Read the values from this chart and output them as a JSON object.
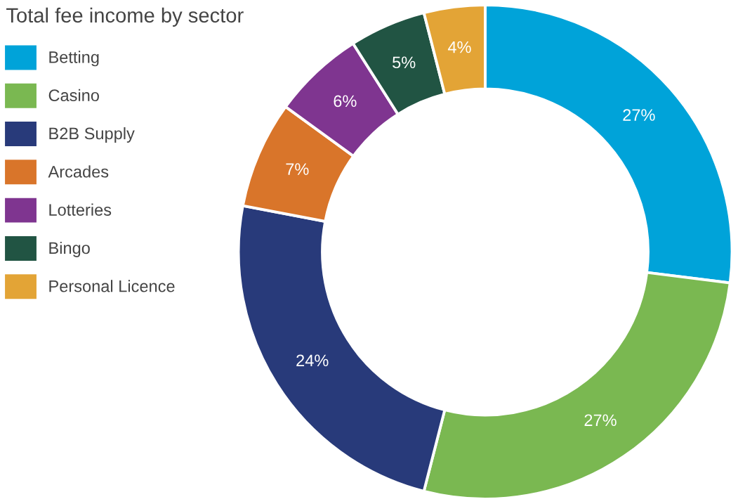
{
  "chart_data": {
    "type": "donut",
    "title": "Total fee income by sector",
    "categories": [
      "Betting",
      "Casino",
      "B2B Supply",
      "Arcades",
      "Lotteries",
      "Bingo",
      "Personal Licence"
    ],
    "values": [
      27,
      27,
      24,
      7,
      6,
      5,
      4
    ],
    "value_labels": [
      "27%",
      "27%",
      "24%",
      "7%",
      "6%",
      "5%",
      "4%"
    ],
    "colors": [
      "#00a3d9",
      "#7ab851",
      "#283a7a",
      "#d9752a",
      "#7f3590",
      "#215443",
      "#e3a436"
    ],
    "legend": "top left"
  }
}
